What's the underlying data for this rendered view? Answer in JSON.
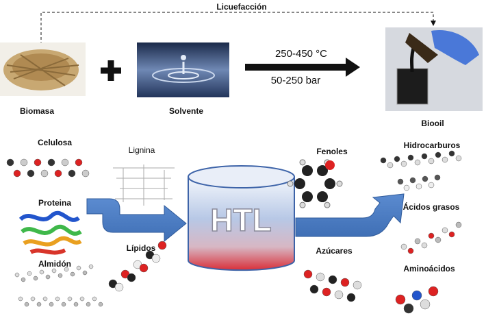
{
  "process": "Licuefacción",
  "inputs": [
    "Biomasa",
    "Solvente"
  ],
  "conditions": [
    "250-450 °C",
    "50-250 bar"
  ],
  "output": "Biooil",
  "feedstock": [
    "Celulosa",
    "Lignina",
    "Proteina",
    "Lípidos",
    "Almidón"
  ],
  "reactor": "HTL",
  "products": [
    "Fenoles",
    "Azúcares",
    "Hidrocarburos",
    "Ácidos grasos",
    "Aminoácidos"
  ]
}
